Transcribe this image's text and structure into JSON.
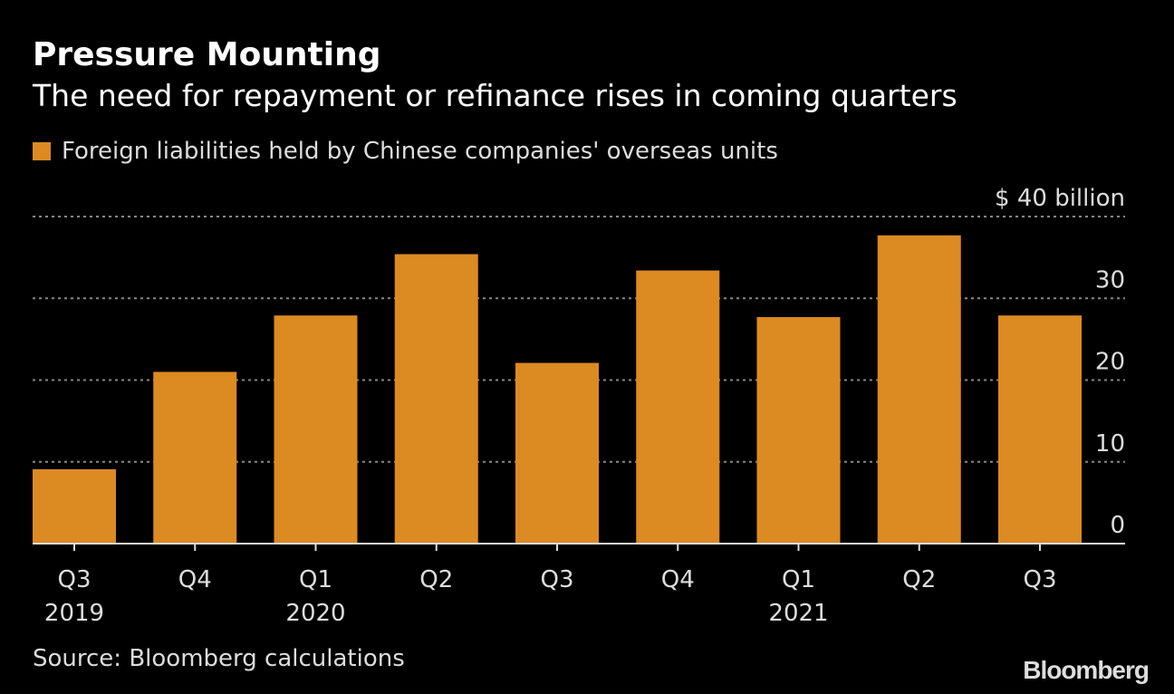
{
  "chart_data": {
    "type": "bar",
    "title": "Pressure Mounting",
    "subtitle": "The need for repayment or refinance rises in coming quarters",
    "categories": [
      "Q3 2019",
      "Q4 2019",
      "Q1 2020",
      "Q2 2020",
      "Q3 2020",
      "Q4 2020",
      "Q1 2021",
      "Q2 2021",
      "Q3 2021"
    ],
    "tick_labels": [
      [
        "Q3",
        "2019"
      ],
      [
        "Q4",
        ""
      ],
      [
        "Q1",
        "2020"
      ],
      [
        "Q2",
        ""
      ],
      [
        "Q3",
        ""
      ],
      [
        "Q4",
        ""
      ],
      [
        "Q1",
        "2021"
      ],
      [
        "Q2",
        ""
      ],
      [
        "Q3",
        ""
      ]
    ],
    "series": [
      {
        "name": "Foreign liabilities held by Chinese companies' overseas units",
        "values": [
          9.1,
          21.0,
          27.9,
          35.4,
          22.1,
          33.4,
          27.7,
          37.7,
          27.9
        ],
        "color": "#dc8a22"
      }
    ],
    "ylim": [
      0,
      40
    ],
    "yticks": [
      0,
      10,
      20,
      30,
      40
    ],
    "ytick_labels": [
      "0",
      "10",
      "20",
      "30",
      "$ 40 billion"
    ],
    "y_axis_side": "right",
    "grid": "horizontal dotted",
    "legend": "top-left",
    "xlabel": "",
    "ylabel": ""
  },
  "source": "Source: Bloomberg calculations",
  "logo": "Bloomberg",
  "colors": {
    "background": "#000000",
    "bar": "#dc8a22",
    "text": "#dddddd"
  }
}
